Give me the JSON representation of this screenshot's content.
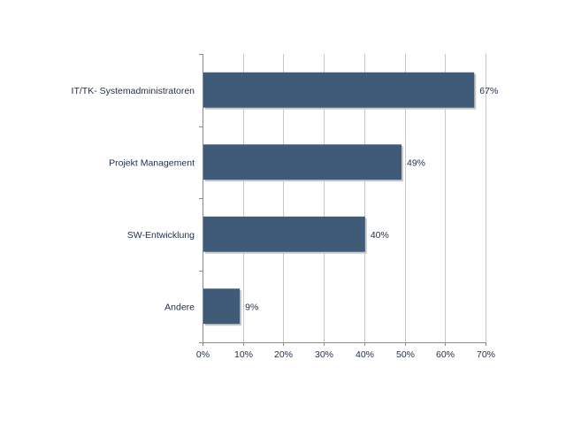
{
  "chart_data": {
    "type": "bar",
    "orientation": "horizontal",
    "categories": [
      "IT/TK- Systemadministratoren",
      "Projekt Management",
      "SW-Entwicklung",
      "Andere"
    ],
    "values": [
      67,
      49,
      40,
      9
    ],
    "data_labels": [
      "67%",
      "49%",
      "40%",
      "9%"
    ],
    "xticks": [
      0,
      10,
      20,
      30,
      40,
      50,
      60,
      70
    ],
    "xtick_labels": [
      "0%",
      "10%",
      "20%",
      "30%",
      "40%",
      "50%",
      "60%",
      "70%"
    ],
    "xlim": [
      0,
      70
    ],
    "title": "",
    "xlabel": "",
    "ylabel": "",
    "grid": "vertical",
    "legend": "none",
    "colors": {
      "bar": "#3f5b78",
      "bar_shadow": "#c9c9c9",
      "grid": "#c8c8c8",
      "axis": "#8a8a8a",
      "text": "#1f2d4d"
    }
  }
}
